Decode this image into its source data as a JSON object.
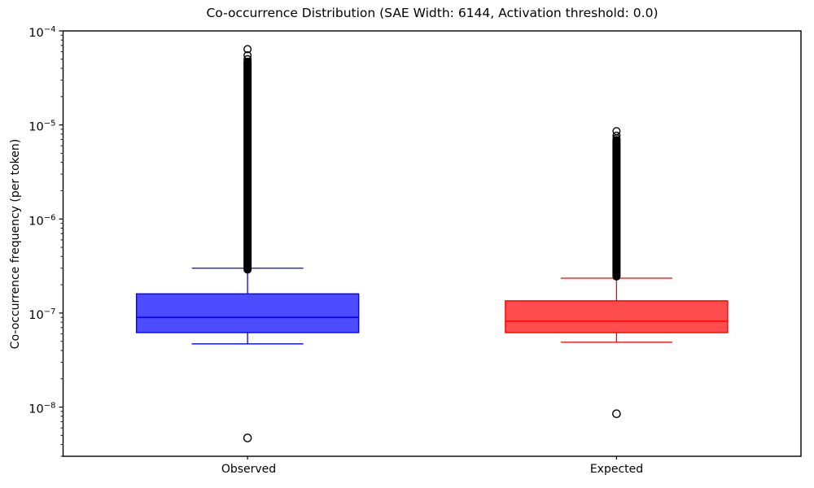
{
  "chart_data": {
    "type": "boxplot",
    "title": "Co-occurrence Distribution (SAE Width: 6144, Activation threshold: 0.0)",
    "ylabel": "Co-occurrence frequency (per token)",
    "xlabel": "",
    "yscale": "log",
    "ylim": [
      3e-09,
      0.0001
    ],
    "y_major_ticks": [
      0.0001,
      1e-05,
      1e-06,
      1e-07,
      1e-08
    ],
    "grid": false,
    "legend": false,
    "background_color": "#ffffff",
    "outlier_color": "#000000",
    "categories": [
      "Observed",
      "Expected"
    ],
    "boxes": [
      {
        "label": "Observed",
        "line_color": "#0000ff",
        "fill_color": "#4d4dff",
        "whisker_low": 4.7e-08,
        "q1": 6.2e-08,
        "median": 9e-08,
        "q3": 1.6e-07,
        "whisker_high": 3e-07,
        "outliers_high_circles": [
          6.4e-05,
          5.5e-05,
          5e-05
        ],
        "outliers_high_dense_range": [
          2.9e-07,
          4.7e-05
        ],
        "outliers_low": [
          4.7e-09
        ]
      },
      {
        "label": "Expected",
        "line_color": "#ff0000",
        "fill_color": "#ff4d4d",
        "whisker_low": 4.9e-08,
        "q1": 6.2e-08,
        "median": 8.2e-08,
        "q3": 1.35e-07,
        "whisker_high": 2.35e-07,
        "outliers_high_circles": [
          8.6e-06,
          7.7e-06,
          7.2e-06
        ],
        "outliers_high_dense_range": [
          2.45e-07,
          6.9e-06
        ],
        "outliers_low": [
          8.5e-09
        ]
      }
    ]
  }
}
